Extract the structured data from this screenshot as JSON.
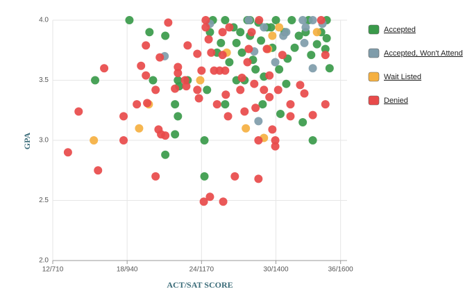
{
  "chart_data": {
    "type": "scatter",
    "x_label": "ACT/SAT SCORE",
    "y_label": "GPA",
    "xlim": [
      710,
      1620
    ],
    "ylim": [
      2.0,
      4.0
    ],
    "xticks": [
      {
        "value": 710,
        "label": "12/710"
      },
      {
        "value": 940,
        "label": "18/940"
      },
      {
        "value": 1170,
        "label": "24/1170"
      },
      {
        "value": 1400,
        "label": "30/1400"
      },
      {
        "value": 1600,
        "label": "36/1600"
      }
    ],
    "yticks": [
      {
        "value": 2.0,
        "label": "2.0"
      },
      {
        "value": 2.5,
        "label": "2.5"
      },
      {
        "value": 3.0,
        "label": "3.0"
      },
      {
        "value": 3.5,
        "label": "3.5"
      },
      {
        "value": 4.0,
        "label": "4.0"
      }
    ],
    "grid": true,
    "legend": "right",
    "series": [
      {
        "name": "Accepted",
        "color": "#3a9a4a",
        "x": [
          841,
          947,
          1009,
          1020,
          1058,
          1058,
          1088,
          1097,
          1088,
          1097,
          1101,
          1127,
          1179,
          1179,
          1187,
          1196,
          1205,
          1218,
          1230,
          1243,
          1243,
          1256,
          1269,
          1278,
          1278,
          1290,
          1295,
          1303,
          1312,
          1320,
          1329,
          1337,
          1346,
          1354,
          1359,
          1363,
          1372,
          1389,
          1400,
          1410,
          1414,
          1427,
          1432,
          1436,
          1449,
          1458,
          1471,
          1483,
          1492,
          1501,
          1509,
          1514,
          1527,
          1540,
          1553,
          1557,
          1566,
          1557,
          1320,
          1385
        ],
        "y": [
          3.5,
          4.0,
          3.9,
          3.5,
          3.87,
          2.88,
          3.3,
          3.2,
          3.05,
          3.5,
          3.45,
          3.5,
          3.0,
          2.7,
          3.42,
          3.9,
          4.0,
          3.73,
          3.81,
          4.0,
          3.3,
          3.65,
          3.94,
          3.81,
          3.5,
          3.9,
          3.73,
          3.5,
          4.0,
          3.87,
          3.67,
          3.59,
          3.98,
          3.83,
          3.3,
          3.53,
          3.94,
          3.77,
          4.0,
          3.59,
          3.22,
          3.9,
          3.47,
          3.68,
          4.0,
          3.77,
          3.87,
          3.15,
          3.9,
          4.0,
          3.71,
          3.0,
          3.8,
          3.9,
          3.76,
          3.85,
          3.6,
          4.0,
          4.0,
          3.94
        ]
      },
      {
        "name": "Accepted, Won't Attend",
        "color": "#7f9caa",
        "x": [
          1056,
          1196,
          1316,
          1363,
          1346,
          1398,
          1423,
          1432,
          1483,
          1488,
          1492,
          1514,
          1514,
          1544,
          1333
        ],
        "y": [
          3.7,
          3.97,
          4.0,
          3.94,
          3.16,
          3.65,
          3.87,
          3.9,
          4.0,
          3.81,
          3.94,
          3.6,
          4.0,
          3.97,
          3.74
        ]
      },
      {
        "name": "Wait Listed",
        "color": "#f5b041",
        "x": [
          837,
          977,
          1007,
          1166,
          1248,
          1307,
          1363,
          1376,
          1389,
          1527,
          1410
        ],
        "y": [
          3.0,
          3.1,
          3.3,
          3.5,
          3.73,
          3.1,
          3.02,
          3.76,
          3.87,
          3.9,
          3.94
        ]
      },
      {
        "name": "Denied",
        "color": "#e84a4a",
        "x": [
          757,
          790,
          850,
          869,
          929,
          929,
          970,
          983,
          998,
          1002,
          998,
          1028,
          1028,
          1037,
          1045,
          1058,
          1067,
          1041,
          1088,
          1097,
          1097,
          1119,
          1123,
          1127,
          1157,
          1157,
          1162,
          1170,
          1177,
          1196,
          1183,
          1192,
          1200,
          1209,
          1226,
          1235,
          1235,
          1243,
          1245,
          1237,
          1218,
          1252,
          1273,
          1290,
          1295,
          1303,
          1312,
          1316,
          1333,
          1337,
          1346,
          1346,
          1363,
          1372,
          1380,
          1380,
          1389,
          1398,
          1398,
          1407,
          1420,
          1445,
          1445,
          1475,
          1488,
          1514,
          1553,
          1553,
          1540,
          1183,
          1256,
          1325,
          1348
        ],
        "y": [
          2.9,
          3.24,
          2.75,
          3.6,
          3.0,
          3.2,
          3.3,
          3.62,
          3.54,
          3.31,
          3.79,
          2.7,
          3.42,
          3.09,
          3.05,
          3.04,
          3.98,
          3.69,
          3.43,
          3.56,
          3.61,
          3.5,
          3.45,
          3.79,
          3.42,
          3.72,
          3.35,
          3.58,
          2.49,
          2.53,
          3.94,
          3.84,
          3.73,
          3.58,
          3.58,
          3.9,
          3.71,
          3.58,
          3.38,
          2.49,
          3.3,
          3.2,
          2.7,
          3.42,
          3.52,
          3.24,
          3.65,
          3.76,
          3.47,
          3.27,
          2.68,
          3.0,
          3.42,
          3.76,
          3.54,
          3.36,
          3.09,
          3.0,
          2.95,
          3.42,
          3.71,
          3.3,
          3.2,
          3.46,
          3.39,
          3.21,
          3.3,
          3.71,
          4.0,
          4.0,
          3.94,
          3.9,
          4.0
        ]
      }
    ]
  }
}
